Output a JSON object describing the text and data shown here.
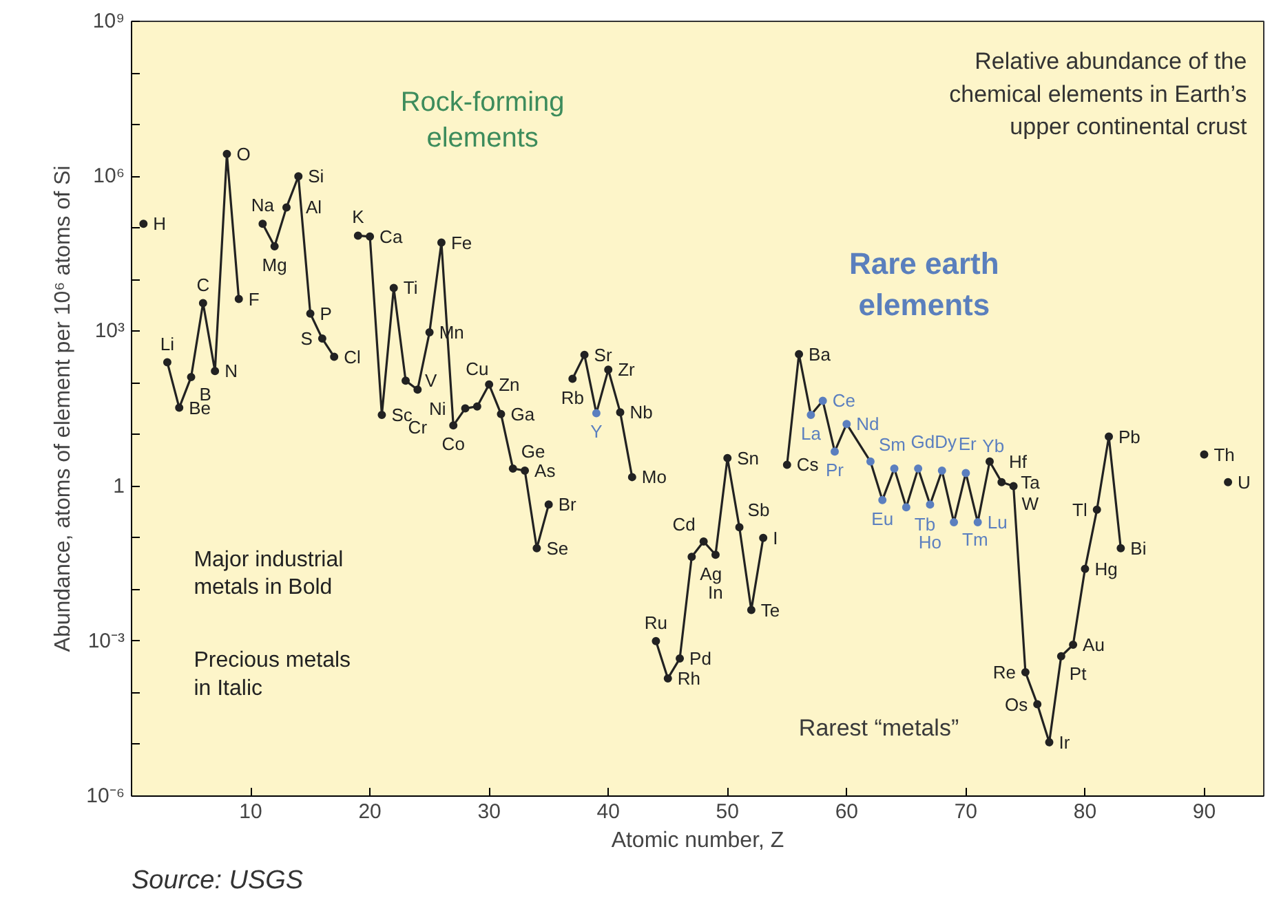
{
  "chart_data": {
    "type": "line",
    "title": "Relative abundance of the chemical elements in Earth’s upper continental crust",
    "xlabel": "Atomic number, Z",
    "ylabel": "Abundance, atoms of element per 10⁶ atoms of Si",
    "log": "y",
    "grid": false,
    "marker": "circle",
    "line_style": "solid",
    "xlim": [
      0,
      95
    ],
    "xticks": [
      10,
      20,
      30,
      40,
      50,
      60,
      70,
      80,
      90
    ],
    "ylim": [
      1e-06,
      1000000000.0
    ],
    "yticks": [
      {
        "value": 1e-06,
        "label": "10⁻⁶"
      },
      {
        "value": 1e-05,
        "label": null
      },
      {
        "value": 0.0001,
        "label": null
      },
      {
        "value": 0.001,
        "label": "10⁻³"
      },
      {
        "value": 0.01,
        "label": null
      },
      {
        "value": 0.1,
        "label": null
      },
      {
        "value": 1,
        "label": "1"
      },
      {
        "value": 10,
        "label": null
      },
      {
        "value": 100,
        "label": null
      },
      {
        "value": 1000,
        "label": "10³"
      },
      {
        "value": 10000.0,
        "label": null
      },
      {
        "value": 100000.0,
        "label": null
      },
      {
        "value": 1000000.0,
        "label": "10⁶"
      },
      {
        "value": 10000000.0,
        "label": null
      },
      {
        "value": 100000000.0,
        "label": null
      },
      {
        "value": 1000000000.0,
        "label": "10⁹"
      }
    ],
    "series": [
      {
        "color": "#222222",
        "x": [
          1,
          2,
          3,
          4,
          5,
          6,
          7,
          8,
          9,
          10,
          11,
          12,
          13,
          14,
          15,
          16,
          17,
          18,
          19,
          20,
          21,
          22,
          23,
          24,
          25,
          26,
          27,
          28,
          29,
          30,
          31,
          32,
          33,
          34,
          35,
          36,
          37,
          38,
          39,
          40,
          41,
          42,
          43,
          44,
          45,
          46,
          47,
          48,
          49,
          50,
          51,
          52,
          53,
          54,
          55,
          56,
          57,
          58,
          59,
          60,
          62,
          63,
          64,
          65,
          66,
          67,
          68,
          69,
          70,
          71,
          72,
          73,
          74,
          75,
          76,
          77,
          78,
          79,
          80,
          81,
          82,
          83,
          84,
          90,
          91,
          92
        ],
        "values": [
          120000,
          null,
          250,
          33,
          130,
          3500,
          170,
          2700000,
          4200,
          null,
          120000,
          44000,
          250000,
          1000000,
          2200,
          720,
          320,
          null,
          71000,
          68000,
          24,
          6900,
          110,
          74,
          950,
          52000,
          15,
          32,
          35,
          93,
          25,
          2.2,
          2.0,
          0.063,
          0.44,
          null,
          120,
          350,
          26,
          180,
          27,
          1.5,
          null,
          0.001,
          0.00019,
          0.00046,
          0.043,
          0.085,
          0.047,
          3.5,
          0.16,
          0.004,
          0.1,
          null,
          2.6,
          360,
          24,
          45,
          4.7,
          16,
          3.0,
          0.54,
          2.2,
          0.39,
          2.2,
          0.44,
          2.0,
          0.2,
          1.8,
          0.2,
          3.0,
          1.2,
          1.0,
          0.00025,
          6e-05,
          1.1e-05,
          0.00051,
          0.00085,
          0.025,
          0.35,
          9.1,
          0.063,
          null,
          4.1,
          null,
          1.2
        ],
        "colors": [
          "#222222",
          "#222222",
          "#222222",
          "#222222",
          "#222222",
          "#222222",
          "#222222",
          "#222222",
          "#222222",
          "#222222",
          "#222222",
          "#222222",
          "#222222",
          "#222222",
          "#222222",
          "#222222",
          "#222222",
          "#222222",
          "#222222",
          "#222222",
          "#222222",
          "#222222",
          "#222222",
          "#222222",
          "#222222",
          "#222222",
          "#222222",
          "#222222",
          "#222222",
          "#222222",
          "#222222",
          "#222222",
          "#222222",
          "#222222",
          "#222222",
          "#222222",
          "#222222",
          "#222222",
          "#5b7fbf",
          "#222222",
          "#222222",
          "#222222",
          "#222222",
          "#222222",
          "#222222",
          "#222222",
          "#222222",
          "#222222",
          "#222222",
          "#222222",
          "#222222",
          "#222222",
          "#222222",
          "#222222",
          "#222222",
          "#222222",
          "#5b7fbf",
          "#5b7fbf",
          "#5b7fbf",
          "#5b7fbf",
          "#5b7fbf",
          "#5b7fbf",
          "#5b7fbf",
          "#5b7fbf",
          "#5b7fbf",
          "#5b7fbf",
          "#5b7fbf",
          "#5b7fbf",
          "#5b7fbf",
          "#5b7fbf",
          "#222222",
          "#222222",
          "#222222",
          "#222222",
          "#222222",
          "#222222",
          "#222222",
          "#222222",
          "#222222",
          "#222222",
          "#222222",
          "#222222",
          "#222222",
          "#222222",
          "#222222",
          "#222222"
        ]
      }
    ],
    "annotations": [
      "Rock-forming elements",
      "Rare earth elements",
      "Rarest “metals”",
      "Major industrial metals in Bold",
      "Precious metals in Italic",
      "Source: USGS",
      {
        "text": "H",
        "x": 1,
        "y": 120000
      },
      {
        "text": "Li",
        "x": 3,
        "y": 250
      },
      {
        "text": "Be",
        "x": 4,
        "y": 33
      },
      {
        "text": "B",
        "x": 5,
        "y": 130
      },
      {
        "text": "C",
        "x": 6,
        "y": 3500
      },
      {
        "text": "N",
        "x": 7,
        "y": 170
      },
      {
        "text": "O",
        "x": 8,
        "y": 2700000
      },
      {
        "text": "F",
        "x": 9,
        "y": 4200
      },
      {
        "text": "Na",
        "x": 11,
        "y": 120000
      },
      {
        "text": "Mg",
        "x": 12,
        "y": 44000
      },
      {
        "text": "Al",
        "x": 13,
        "y": 250000
      },
      {
        "text": "Si",
        "x": 14,
        "y": 1000000
      },
      {
        "text": "P",
        "x": 15,
        "y": 2200
      },
      {
        "text": "S",
        "x": 16,
        "y": 720
      },
      {
        "text": "Cl",
        "x": 17,
        "y": 320
      },
      {
        "text": "K",
        "x": 19,
        "y": 71000
      },
      {
        "text": "Ca",
        "x": 20,
        "y": 68000
      },
      {
        "text": "Sc",
        "x": 21,
        "y": 24
      },
      {
        "text": "Ti",
        "x": 22,
        "y": 6900
      },
      {
        "text": "V",
        "x": 23,
        "y": 110
      },
      {
        "text": "Cr",
        "x": 24,
        "y": 74
      },
      {
        "text": "Mn",
        "x": 25,
        "y": 950
      },
      {
        "text": "Fe",
        "x": 26,
        "y": 52000
      },
      {
        "text": "Co",
        "x": 27,
        "y": 15
      },
      {
        "text": "Ni",
        "x": 28,
        "y": 32
      },
      {
        "text": "Cu",
        "x": 29,
        "y": 35
      },
      {
        "text": "Zn",
        "x": 30,
        "y": 93
      },
      {
        "text": "Ga",
        "x": 31,
        "y": 25
      },
      {
        "text": "Ge",
        "x": 32,
        "y": 2.2
      },
      {
        "text": "As",
        "x": 33,
        "y": 2.0
      },
      {
        "text": "Se",
        "x": 34,
        "y": 0.063
      },
      {
        "text": "Br",
        "x": 35,
        "y": 0.44
      },
      {
        "text": "Rb",
        "x": 37,
        "y": 120
      },
      {
        "text": "Sr",
        "x": 38,
        "y": 350
      },
      {
        "text": "Y",
        "x": 39,
        "y": 26
      },
      {
        "text": "Zr",
        "x": 40,
        "y": 180
      },
      {
        "text": "Nb",
        "x": 41,
        "y": 27
      },
      {
        "text": "Mo",
        "x": 42,
        "y": 1.5
      },
      {
        "text": "Ru",
        "x": 44,
        "y": 0.001
      },
      {
        "text": "Rh",
        "x": 45,
        "y": 0.00019
      },
      {
        "text": "Pd",
        "x": 46,
        "y": 0.00046
      },
      {
        "text": "Ag",
        "x": 47,
        "y": 0.043
      },
      {
        "text": "Cd",
        "x": 48,
        "y": 0.085
      },
      {
        "text": "In",
        "x": 49,
        "y": 0.047
      },
      {
        "text": "Sn",
        "x": 50,
        "y": 3.5
      },
      {
        "text": "Sb",
        "x": 51,
        "y": 0.16
      },
      {
        "text": "Te",
        "x": 52,
        "y": 0.004
      },
      {
        "text": "I",
        "x": 53,
        "y": 0.1
      },
      {
        "text": "Cs",
        "x": 55,
        "y": 2.6
      },
      {
        "text": "Ba",
        "x": 56,
        "y": 360
      },
      {
        "text": "La",
        "x": 57,
        "y": 24
      },
      {
        "text": "Ce",
        "x": 58,
        "y": 45
      },
      {
        "text": "Pr",
        "x": 59,
        "y": 4.7
      },
      {
        "text": "Nd",
        "x": 60,
        "y": 16
      },
      {
        "text": "Sm",
        "x": 62,
        "y": 3.0
      },
      {
        "text": "Eu",
        "x": 63,
        "y": 0.54
      },
      {
        "text": "Gd",
        "x": 64,
        "y": 2.2
      },
      {
        "text": "Tb",
        "x": 65,
        "y": 0.39
      },
      {
        "text": "Dy",
        "x": 66,
        "y": 2.2
      },
      {
        "text": "Ho",
        "x": 67,
        "y": 0.44
      },
      {
        "text": "Er",
        "x": 68,
        "y": 2.0
      },
      {
        "text": "Tm",
        "x": 69,
        "y": 0.2
      },
      {
        "text": "Yb",
        "x": 70,
        "y": 1.8
      },
      {
        "text": "Lu",
        "x": 71,
        "y": 0.2
      },
      {
        "text": "Hf",
        "x": 72,
        "y": 3.0
      },
      {
        "text": "Ta",
        "x": 73,
        "y": 1.2
      },
      {
        "text": "W",
        "x": 74,
        "y": 1.0
      },
      {
        "text": "Re",
        "x": 75,
        "y": 0.00025
      },
      {
        "text": "Os",
        "x": 76,
        "y": 6e-05
      },
      {
        "text": "Ir",
        "x": 77,
        "y": 1.1e-05
      },
      {
        "text": "Pt",
        "x": 78,
        "y": 0.00051
      },
      {
        "text": "Au",
        "x": 79,
        "y": 0.00085
      },
      {
        "text": "Hg",
        "x": 80,
        "y": 0.025
      },
      {
        "text": "Tl",
        "x": 81,
        "y": 0.35
      },
      {
        "text": "Pb",
        "x": 82,
        "y": 9.1
      },
      {
        "text": "Bi",
        "x": 83,
        "y": 0.063
      },
      {
        "text": "Th",
        "x": 90,
        "y": 4.1
      },
      {
        "text": "U",
        "x": 92,
        "y": 1.2
      }
    ]
  }
}
